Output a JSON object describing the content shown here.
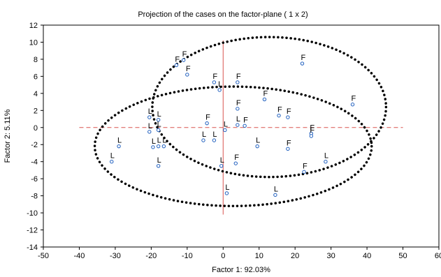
{
  "chart_data": {
    "type": "scatter",
    "title": "Projection of the cases on the factor-plane ( 1 x 2)",
    "xlabel": "Factor 1: 92.03%",
    "ylabel": "Factor 2: 5.11%",
    "xlim": [
      -50,
      60
    ],
    "ylim": [
      -14,
      12
    ],
    "xticks": [
      "-50",
      "-40",
      "-30",
      "-20",
      "-10",
      "0",
      "10",
      "20",
      "30",
      "40",
      "50",
      "60"
    ],
    "yticks": [
      "12",
      "10",
      "8",
      "6",
      "4",
      "2",
      "0",
      "-2",
      "-4",
      "-6",
      "-8",
      "-10",
      "-12",
      "-14"
    ],
    "grid": false,
    "reference_lines": {
      "x": 0,
      "y": 0,
      "color": "#d9534f"
    },
    "marker_color": "#1f5fbf",
    "ellipse_color": "#000000",
    "points": [
      {
        "x": -13.0,
        "y": 7.3,
        "label": "F"
      },
      {
        "x": -11.0,
        "y": 7.9,
        "label": "F"
      },
      {
        "x": -10.0,
        "y": 6.2,
        "label": "F"
      },
      {
        "x": -2.5,
        "y": 5.3,
        "label": "F"
      },
      {
        "x": 4.0,
        "y": 5.3,
        "label": "F"
      },
      {
        "x": 22.0,
        "y": 7.5,
        "label": "F"
      },
      {
        "x": 11.5,
        "y": 3.3,
        "label": "F"
      },
      {
        "x": 36.0,
        "y": 2.7,
        "label": "F"
      },
      {
        "x": 4.0,
        "y": 2.2,
        "label": "F"
      },
      {
        "x": 15.5,
        "y": 1.4,
        "label": "F"
      },
      {
        "x": 18.0,
        "y": 1.2,
        "label": "F"
      },
      {
        "x": -4.5,
        "y": 0.5,
        "label": "F"
      },
      {
        "x": 6.0,
        "y": 0.2,
        "label": "F"
      },
      {
        "x": 24.5,
        "y": -0.7,
        "label": "F"
      },
      {
        "x": 24.5,
        "y": -1.0,
        "label": "F"
      },
      {
        "x": 18.0,
        "y": -2.5,
        "label": "F"
      },
      {
        "x": 3.5,
        "y": -4.2,
        "label": "F"
      },
      {
        "x": 22.5,
        "y": -5.2,
        "label": "F"
      },
      {
        "x": -20.5,
        "y": 1.2,
        "label": "L"
      },
      {
        "x": -18.0,
        "y": 0.9,
        "label": "L"
      },
      {
        "x": -20.5,
        "y": -0.5,
        "label": "L"
      },
      {
        "x": -18.0,
        "y": -0.3,
        "label": "L"
      },
      {
        "x": -1.0,
        "y": 4.4,
        "label": "L"
      },
      {
        "x": 4.0,
        "y": 0.3,
        "label": "L"
      },
      {
        "x": 0.5,
        "y": -0.3,
        "label": "L"
      },
      {
        "x": -5.5,
        "y": -1.5,
        "label": "L"
      },
      {
        "x": -2.5,
        "y": -1.5,
        "label": "L"
      },
      {
        "x": -19.5,
        "y": -2.3,
        "label": "L"
      },
      {
        "x": -18.0,
        "y": -2.2,
        "label": "L"
      },
      {
        "x": -16.5,
        "y": -2.2,
        "label": "L"
      },
      {
        "x": -29.0,
        "y": -2.2,
        "label": "L"
      },
      {
        "x": 9.5,
        "y": -2.2,
        "label": "L"
      },
      {
        "x": -31.0,
        "y": -4.0,
        "label": "L"
      },
      {
        "x": -0.5,
        "y": -4.5,
        "label": "L"
      },
      {
        "x": -18.0,
        "y": -4.5,
        "label": "L"
      },
      {
        "x": 28.5,
        "y": -4.0,
        "label": "L"
      },
      {
        "x": 1.0,
        "y": -7.7,
        "label": "L"
      },
      {
        "x": 14.5,
        "y": -7.9,
        "label": "L"
      }
    ],
    "ellipses": [
      {
        "center": [
          12.8,
          2.4
        ],
        "radius_x": 32.5,
        "radius_y": 8.2
      },
      {
        "center": [
          2.8,
          -2.2
        ],
        "radius_x": 38.5,
        "radius_y": 7.0
      }
    ]
  }
}
